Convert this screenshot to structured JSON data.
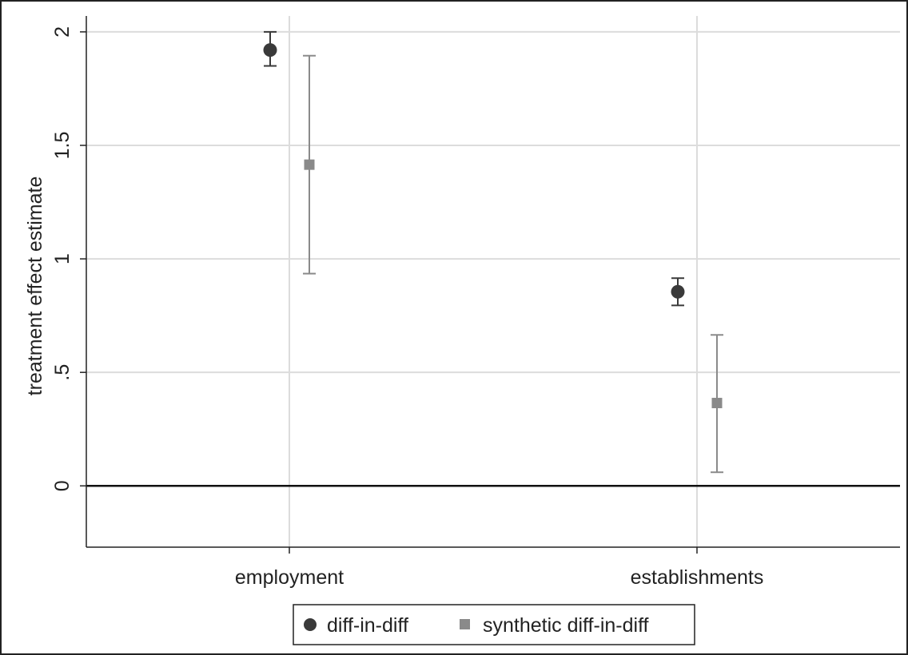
{
  "chart_data": {
    "type": "scatter",
    "subtype": "point-estimate-with-confidence-intervals",
    "categories": [
      "employment",
      "establishments"
    ],
    "xlabel": "",
    "ylabel": "treatment effect estimate",
    "ylim": [
      -0.27,
      2.07
    ],
    "yticks": [
      0,
      0.5,
      1,
      1.5,
      2
    ],
    "ytick_labels": [
      "0",
      ".5",
      "1",
      "1.5",
      "2"
    ],
    "grid": true,
    "reference_line_y": 0,
    "legend_position": "bottom",
    "series": [
      {
        "name": "diff-in-diff",
        "marker": "circle",
        "color": "#3a3a3a",
        "points": [
          {
            "category": "employment",
            "estimate": 1.92,
            "ci_low": 1.85,
            "ci_high": 2.0
          },
          {
            "category": "establishments",
            "estimate": 0.855,
            "ci_low": 0.795,
            "ci_high": 0.915
          }
        ]
      },
      {
        "name": "synthetic diff-in-diff",
        "marker": "square",
        "color": "#8a8a8a",
        "points": [
          {
            "category": "employment",
            "estimate": 1.415,
            "ci_low": 0.935,
            "ci_high": 1.895
          },
          {
            "category": "establishments",
            "estimate": 0.365,
            "ci_low": 0.06,
            "ci_high": 0.665
          }
        ]
      }
    ]
  }
}
